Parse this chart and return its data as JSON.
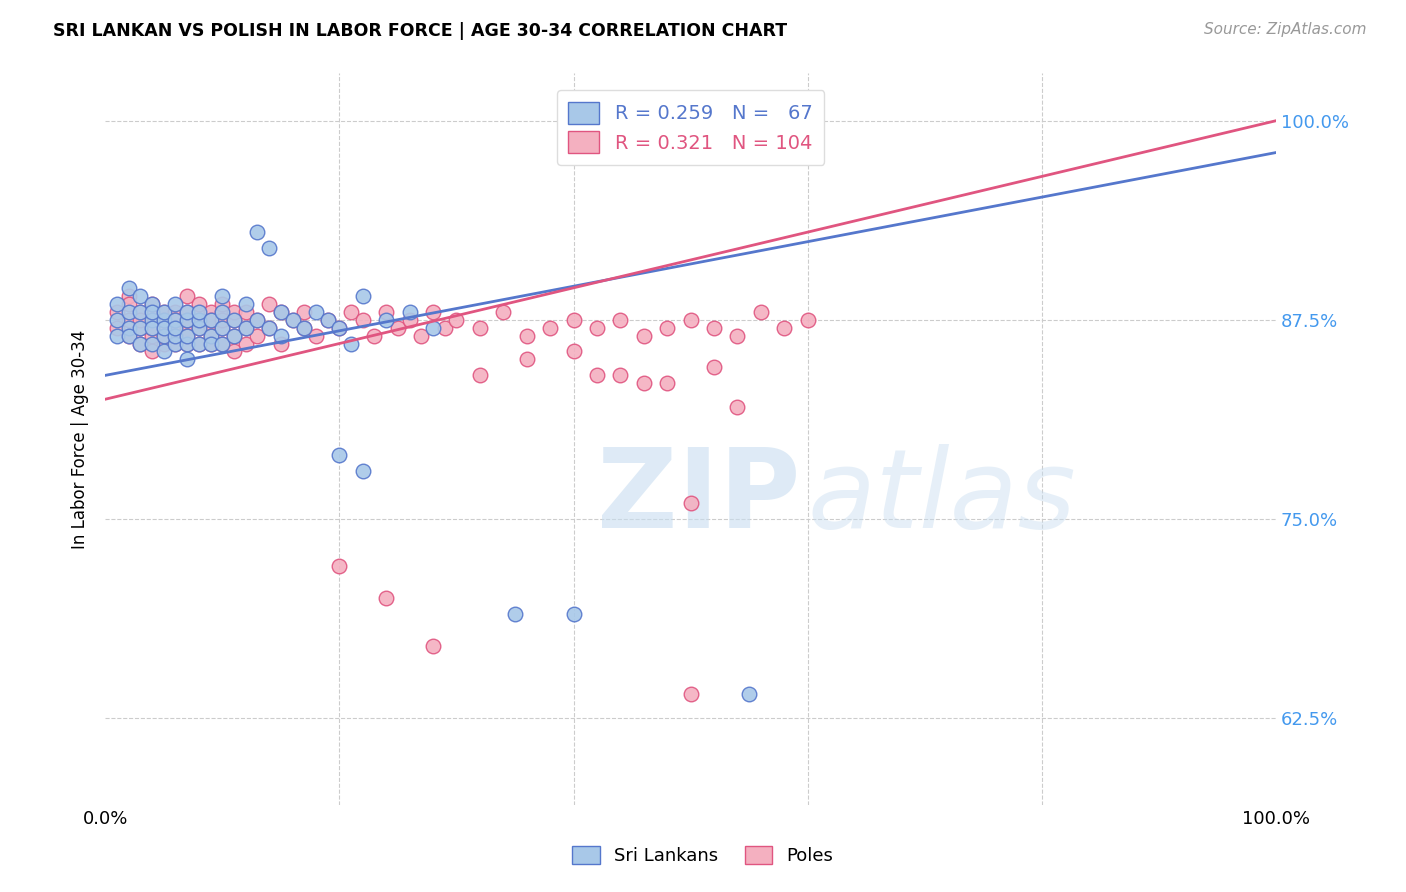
{
  "title": "SRI LANKAN VS POLISH IN LABOR FORCE | AGE 30-34 CORRELATION CHART",
  "source_text": "Source: ZipAtlas.com",
  "ylabel": "In Labor Force | Age 30-34",
  "ytick_labels": [
    "62.5%",
    "75.0%",
    "87.5%",
    "100.0%"
  ],
  "ytick_values": [
    0.625,
    0.75,
    0.875,
    1.0
  ],
  "xlim": [
    0.0,
    1.0
  ],
  "ylim": [
    0.57,
    1.03
  ],
  "legend_blue_label": "R = 0.259   N =   67",
  "legend_pink_label": "R = 0.321   N = 104",
  "blue_color": "#a8c8e8",
  "pink_color": "#f4b0c0",
  "line_blue": "#5577cc",
  "line_pink": "#e05580",
  "blue_intercept": 0.84,
  "blue_slope": 0.14,
  "pink_intercept": 0.825,
  "pink_slope": 0.175,
  "blue_scatter_x": [
    0.01,
    0.01,
    0.01,
    0.02,
    0.02,
    0.02,
    0.02,
    0.03,
    0.03,
    0.03,
    0.03,
    0.04,
    0.04,
    0.04,
    0.04,
    0.04,
    0.05,
    0.05,
    0.05,
    0.05,
    0.05,
    0.06,
    0.06,
    0.06,
    0.06,
    0.06,
    0.07,
    0.07,
    0.07,
    0.07,
    0.07,
    0.08,
    0.08,
    0.08,
    0.08,
    0.09,
    0.09,
    0.09,
    0.1,
    0.1,
    0.1,
    0.1,
    0.11,
    0.11,
    0.12,
    0.12,
    0.13,
    0.14,
    0.15,
    0.15,
    0.16,
    0.17,
    0.18,
    0.19,
    0.2,
    0.21,
    0.22,
    0.24,
    0.26,
    0.28,
    0.13,
    0.14,
    0.2,
    0.22,
    0.35,
    0.4,
    0.55
  ],
  "blue_scatter_y": [
    0.875,
    0.885,
    0.865,
    0.88,
    0.87,
    0.895,
    0.865,
    0.88,
    0.87,
    0.89,
    0.86,
    0.875,
    0.885,
    0.86,
    0.87,
    0.88,
    0.865,
    0.875,
    0.88,
    0.855,
    0.87,
    0.86,
    0.875,
    0.865,
    0.885,
    0.87,
    0.86,
    0.875,
    0.865,
    0.88,
    0.85,
    0.87,
    0.86,
    0.875,
    0.88,
    0.865,
    0.875,
    0.86,
    0.87,
    0.88,
    0.86,
    0.89,
    0.865,
    0.875,
    0.87,
    0.885,
    0.875,
    0.87,
    0.88,
    0.865,
    0.875,
    0.87,
    0.88,
    0.875,
    0.87,
    0.86,
    0.89,
    0.875,
    0.88,
    0.87,
    0.93,
    0.92,
    0.79,
    0.78,
    0.69,
    0.69,
    0.64
  ],
  "pink_scatter_x": [
    0.01,
    0.01,
    0.02,
    0.02,
    0.02,
    0.02,
    0.03,
    0.03,
    0.03,
    0.03,
    0.04,
    0.04,
    0.04,
    0.04,
    0.04,
    0.05,
    0.05,
    0.05,
    0.05,
    0.05,
    0.06,
    0.06,
    0.06,
    0.06,
    0.06,
    0.07,
    0.07,
    0.07,
    0.07,
    0.07,
    0.07,
    0.08,
    0.08,
    0.08,
    0.08,
    0.08,
    0.09,
    0.09,
    0.09,
    0.09,
    0.09,
    0.1,
    0.1,
    0.1,
    0.1,
    0.1,
    0.11,
    0.11,
    0.11,
    0.11,
    0.12,
    0.12,
    0.12,
    0.13,
    0.13,
    0.14,
    0.14,
    0.15,
    0.15,
    0.16,
    0.17,
    0.17,
    0.18,
    0.19,
    0.2,
    0.21,
    0.22,
    0.23,
    0.24,
    0.25,
    0.26,
    0.27,
    0.28,
    0.29,
    0.3,
    0.32,
    0.34,
    0.36,
    0.38,
    0.4,
    0.42,
    0.44,
    0.46,
    0.48,
    0.5,
    0.52,
    0.54,
    0.56,
    0.58,
    0.6,
    0.32,
    0.36,
    0.4,
    0.44,
    0.48,
    0.52,
    0.5,
    0.54,
    0.42,
    0.46,
    0.2,
    0.24,
    0.28,
    0.5
  ],
  "pink_scatter_y": [
    0.88,
    0.87,
    0.89,
    0.875,
    0.865,
    0.885,
    0.87,
    0.88,
    0.86,
    0.875,
    0.865,
    0.88,
    0.87,
    0.885,
    0.855,
    0.87,
    0.88,
    0.86,
    0.875,
    0.865,
    0.87,
    0.88,
    0.86,
    0.875,
    0.865,
    0.87,
    0.88,
    0.86,
    0.875,
    0.865,
    0.89,
    0.87,
    0.88,
    0.86,
    0.875,
    0.885,
    0.87,
    0.88,
    0.86,
    0.875,
    0.865,
    0.87,
    0.88,
    0.86,
    0.875,
    0.885,
    0.865,
    0.875,
    0.855,
    0.88,
    0.87,
    0.88,
    0.86,
    0.875,
    0.865,
    0.87,
    0.885,
    0.86,
    0.88,
    0.875,
    0.87,
    0.88,
    0.865,
    0.875,
    0.87,
    0.88,
    0.875,
    0.865,
    0.88,
    0.87,
    0.875,
    0.865,
    0.88,
    0.87,
    0.875,
    0.87,
    0.88,
    0.865,
    0.87,
    0.875,
    0.87,
    0.875,
    0.865,
    0.87,
    0.875,
    0.87,
    0.865,
    0.88,
    0.87,
    0.875,
    0.84,
    0.85,
    0.855,
    0.84,
    0.835,
    0.845,
    0.76,
    0.82,
    0.84,
    0.835,
    0.72,
    0.7,
    0.67,
    0.64
  ]
}
